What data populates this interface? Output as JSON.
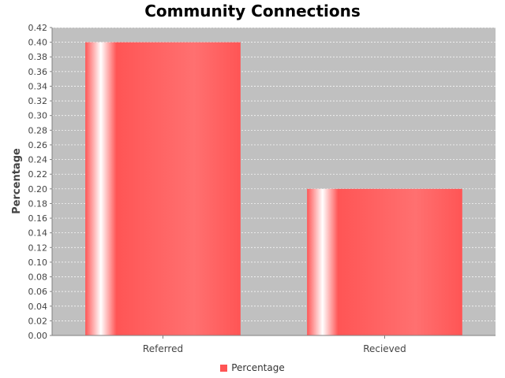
{
  "chart_data": {
    "type": "bar",
    "title": "Community Connections",
    "xlabel": "",
    "ylabel": "Percentage",
    "categories": [
      "Referred",
      "Recieved"
    ],
    "series": [
      {
        "name": "Percentage",
        "values": [
          0.4,
          0.2
        ],
        "color": "#ff5555"
      }
    ],
    "ylim": [
      0,
      0.42
    ],
    "ytick_step": 0.02,
    "grid": true,
    "legend_position": "bottom",
    "plot_background": "#c0c0c0"
  }
}
